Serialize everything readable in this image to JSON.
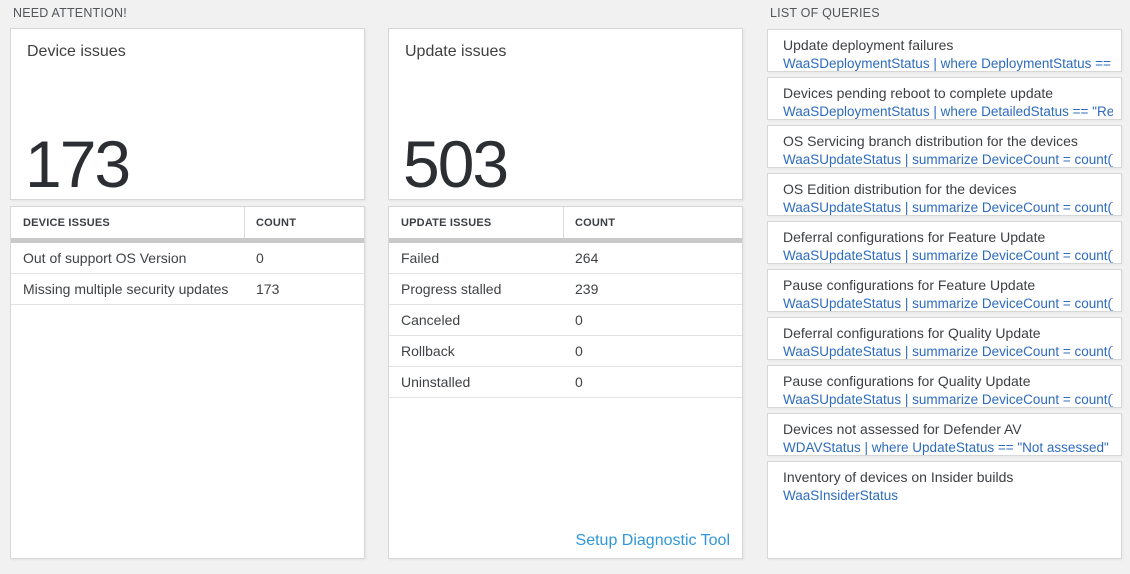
{
  "need_attention": {
    "header": "NEED ATTENTION!",
    "device_card": {
      "title": "Device issues",
      "value": "173"
    },
    "device_table": {
      "col1": "DEVICE ISSUES",
      "col2": "COUNT",
      "rows": [
        {
          "label": "Out of support OS Version",
          "count": "0"
        },
        {
          "label": "Missing multiple security updates",
          "count": "173"
        }
      ]
    },
    "update_card": {
      "title": "Update issues",
      "value": "503"
    },
    "update_table": {
      "col1": "UPDATE ISSUES",
      "col2": "COUNT",
      "rows": [
        {
          "label": "Failed",
          "count": "264"
        },
        {
          "label": "Progress stalled",
          "count": "239"
        },
        {
          "label": "Canceled",
          "count": "0"
        },
        {
          "label": "Rollback",
          "count": "0"
        },
        {
          "label": "Uninstalled",
          "count": "0"
        }
      ]
    },
    "setup_link": "Setup Diagnostic Tool"
  },
  "queries": {
    "header": "LIST OF QUERIES",
    "items": [
      {
        "title": "Update deployment failures",
        "query": "WaaSDeploymentStatus | where DeploymentStatus == \"Failed\" |..."
      },
      {
        "title": "Devices pending reboot to complete update",
        "query": "WaaSDeploymentStatus | where DetailedStatus == \"Reboot pend..."
      },
      {
        "title": "OS Servicing branch distribution for the devices",
        "query": "WaaSUpdateStatus | summarize DeviceCount = count() by OSSer..."
      },
      {
        "title": "OS Edition distribution for the devices",
        "query": "WaaSUpdateStatus | summarize DeviceCount = count() by OSEdit..."
      },
      {
        "title": "Deferral configurations for Feature Update",
        "query": "WaaSUpdateStatus | summarize DeviceCount = count() by Featur..."
      },
      {
        "title": "Pause configurations for Feature Update",
        "query": "WaaSUpdateStatus | summarize DeviceCount = count() by Featur..."
      },
      {
        "title": "Deferral configurations for Quality Update",
        "query": "WaaSUpdateStatus | summarize DeviceCount = count() by Qualit..."
      },
      {
        "title": "Pause configurations for Quality Update",
        "query": "WaaSUpdateStatus | summarize DeviceCount = count() by Qualit..."
      },
      {
        "title": "Devices not assessed for Defender AV",
        "query": "WDAVStatus | where UpdateStatus == \"Not assessed\" | render ta..."
      },
      {
        "title": "Inventory of devices on Insider builds",
        "query": "WaaSInsiderStatus"
      }
    ]
  },
  "colors": {
    "page_bg": "#f1f1f1",
    "panel_border": "#d7d7d7",
    "header_text": "#53565a",
    "title_text": "#404040",
    "value_text": "#2b2e32",
    "table_bar": "#c9c9c9",
    "row_divider": "#dfe3e4",
    "query_link": "#2d6bbf",
    "setup_link": "#2f97dd"
  }
}
